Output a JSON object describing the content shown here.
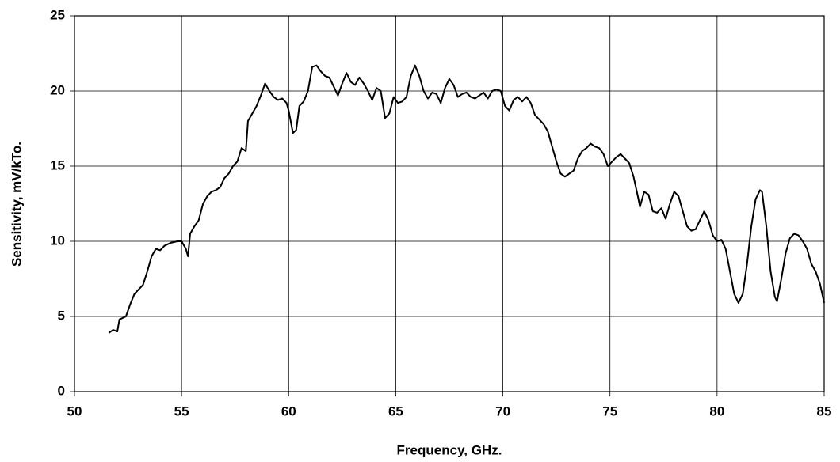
{
  "chart_data": {
    "type": "line",
    "xlabel": "Frequency, GHz.",
    "ylabel": "Sensitivity, mV/kTo.",
    "xlim": [
      50,
      85
    ],
    "xticks": [
      50,
      55,
      60,
      65,
      70,
      75,
      80,
      85
    ],
    "ylim": [
      0,
      25
    ],
    "yticks": [
      0,
      5,
      10,
      15,
      20,
      25
    ],
    "grid": true,
    "series": [
      {
        "name": "Sensitivity",
        "color": "#000000",
        "x": [
          51.6,
          51.8,
          52.0,
          52.1,
          52.4,
          52.6,
          52.8,
          53.0,
          53.2,
          53.4,
          53.6,
          53.8,
          54.0,
          54.2,
          54.5,
          54.8,
          55.0,
          55.2,
          55.3,
          55.4,
          55.6,
          55.8,
          56.0,
          56.2,
          56.4,
          56.6,
          56.8,
          57.0,
          57.2,
          57.4,
          57.6,
          57.8,
          58.0,
          58.1,
          58.3,
          58.5,
          58.7,
          58.9,
          59.1,
          59.3,
          59.5,
          59.7,
          59.9,
          60.0,
          60.2,
          60.35,
          60.5,
          60.7,
          60.9,
          61.1,
          61.3,
          61.5,
          61.7,
          61.9,
          62.1,
          62.3,
          62.5,
          62.7,
          62.9,
          63.1,
          63.3,
          63.5,
          63.7,
          63.9,
          64.1,
          64.3,
          64.5,
          64.7,
          64.9,
          65.1,
          65.3,
          65.5,
          65.7,
          65.9,
          66.1,
          66.3,
          66.5,
          66.7,
          66.9,
          67.1,
          67.3,
          67.5,
          67.7,
          67.9,
          68.1,
          68.3,
          68.5,
          68.7,
          68.9,
          69.1,
          69.3,
          69.5,
          69.7,
          69.9,
          70.1,
          70.3,
          70.5,
          70.7,
          70.9,
          71.1,
          71.3,
          71.5,
          71.7,
          71.9,
          72.1,
          72.3,
          72.5,
          72.7,
          72.9,
          73.1,
          73.3,
          73.5,
          73.7,
          73.9,
          74.1,
          74.3,
          74.5,
          74.7,
          74.9,
          75.1,
          75.3,
          75.5,
          75.7,
          75.9,
          76.1,
          76.3,
          76.4,
          76.6,
          76.8,
          77.0,
          77.2,
          77.4,
          77.6,
          77.8,
          78.0,
          78.2,
          78.4,
          78.6,
          78.8,
          79.0,
          79.2,
          79.4,
          79.6,
          79.8,
          80.0,
          80.2,
          80.4,
          80.6,
          80.8,
          81.0,
          81.2,
          81.4,
          81.6,
          81.8,
          82.0,
          82.1,
          82.3,
          82.5,
          82.7,
          82.8,
          83.0,
          83.2,
          83.4,
          83.6,
          83.8,
          84.0,
          84.2,
          84.4,
          84.6,
          84.8,
          85.0
        ],
        "values": [
          3.9,
          4.1,
          4.0,
          4.8,
          5.0,
          5.8,
          6.5,
          6.8,
          7.1,
          8.0,
          9.0,
          9.5,
          9.4,
          9.7,
          9.9,
          10.0,
          10.0,
          9.5,
          9.0,
          10.5,
          11.0,
          11.4,
          12.5,
          13.0,
          13.3,
          13.4,
          13.6,
          14.2,
          14.5,
          15.0,
          15.3,
          16.2,
          16.0,
          18.0,
          18.5,
          19.0,
          19.7,
          20.5,
          20.0,
          19.6,
          19.4,
          19.5,
          19.2,
          18.7,
          17.2,
          17.4,
          19.0,
          19.3,
          20.0,
          21.6,
          21.7,
          21.3,
          21.0,
          20.9,
          20.3,
          19.7,
          20.5,
          21.2,
          20.6,
          20.4,
          20.9,
          20.5,
          20.0,
          19.4,
          20.2,
          20.0,
          18.2,
          18.5,
          19.6,
          19.2,
          19.3,
          19.6,
          21.0,
          21.7,
          21.0,
          20.0,
          19.5,
          19.9,
          19.8,
          19.2,
          20.2,
          20.8,
          20.4,
          19.6,
          19.8,
          19.9,
          19.6,
          19.5,
          19.7,
          19.9,
          19.5,
          20.0,
          20.1,
          20.0,
          19.0,
          18.7,
          19.4,
          19.6,
          19.3,
          19.6,
          19.2,
          18.4,
          18.1,
          17.8,
          17.3,
          16.3,
          15.3,
          14.5,
          14.3,
          14.5,
          14.7,
          15.5,
          16.0,
          16.2,
          16.5,
          16.3,
          16.2,
          15.8,
          15.0,
          15.3,
          15.6,
          15.8,
          15.5,
          15.2,
          14.3,
          13.0,
          12.3,
          13.3,
          13.1,
          12.0,
          11.9,
          12.2,
          11.5,
          12.5,
          13.3,
          13.0,
          12.0,
          11.0,
          10.7,
          10.8,
          11.4,
          12.0,
          11.4,
          10.4,
          10.0,
          10.1,
          9.5,
          8.0,
          6.5,
          5.9,
          6.5,
          8.5,
          11.0,
          12.8,
          13.4,
          13.3,
          11.0,
          8.0,
          6.3,
          6.0,
          7.5,
          9.2,
          10.2,
          10.5,
          10.4,
          10.0,
          9.5,
          8.5,
          8.0,
          7.2,
          5.9
        ]
      }
    ]
  }
}
